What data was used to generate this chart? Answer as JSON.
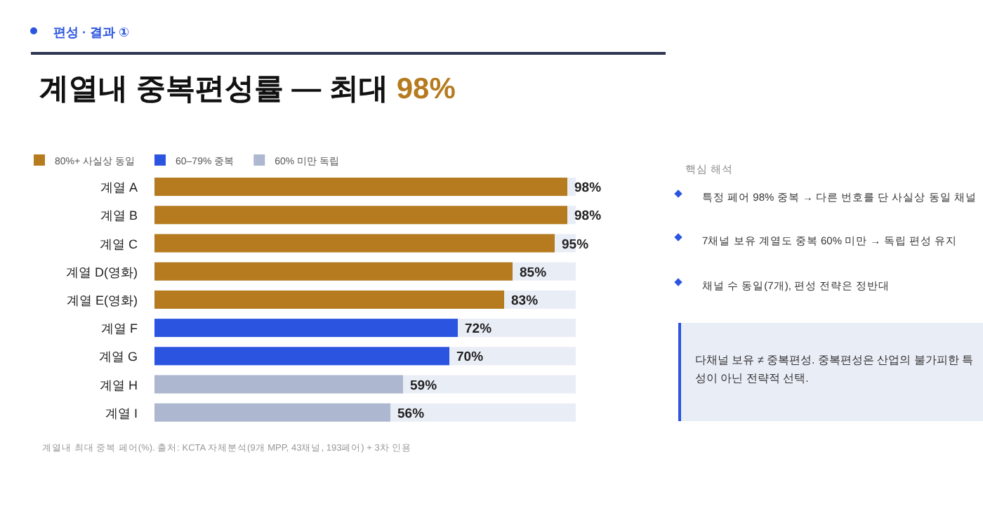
{
  "chart_data": {
    "type": "bar",
    "orientation": "horizontal",
    "title": "계열내 중복편성률 — 최대 98%",
    "subtitle": "편성 · 결과 ①",
    "categories": [
      "계열 A",
      "계열 B",
      "계열 C",
      "계열 D(영화)",
      "계열 E(영화)",
      "계열 F",
      "계열 G",
      "계열 H",
      "계열 I"
    ],
    "xlim": [
      0,
      100
    ],
    "series": [
      {
        "name": "80%+ 사실상 동일",
        "color": "#b57b1e",
        "values": [
          98,
          98,
          95,
          85,
          83,
          null,
          null,
          null,
          null
        ],
        "value_labels": [
          "98%",
          "98%",
          "95%",
          "85%",
          "83%",
          null,
          null,
          null,
          null
        ]
      },
      {
        "name": "60–79% 중복",
        "color": "#2b55e0",
        "values": [
          null,
          null,
          null,
          null,
          null,
          72,
          70,
          null,
          null
        ],
        "value_labels": [
          null,
          null,
          null,
          null,
          null,
          "72%",
          "70%",
          null,
          null
        ]
      },
      {
        "name": "60% 미만 독립",
        "color": "#adb7cf",
        "values": [
          null,
          null,
          null,
          null,
          null,
          null,
          null,
          59,
          56
        ],
        "value_labels": [
          null,
          null,
          null,
          null,
          null,
          null,
          null,
          "59%",
          "56%"
        ]
      }
    ],
    "legend": "top left",
    "annotations": [
      "핵심 해석",
      "특정 페어 98% 중복 → 다른 번호를 단 사실상 동일 채널",
      "7채널 보유 계열도 중복 60% 미만 → 독립 편성 유지",
      "채널 수 동일(7개), 편성 전략은 정반대",
      "다채널 보유 ≠ 중복편성. 중복편성은 산업의 불가피한 특성이 아닌 전략적 선택.",
      "계열내 최대 중복 페어(%). 출처: KCTA 자체분석(9개 MPP, 43채널, 193페어) + 3차 인용"
    ]
  }
}
